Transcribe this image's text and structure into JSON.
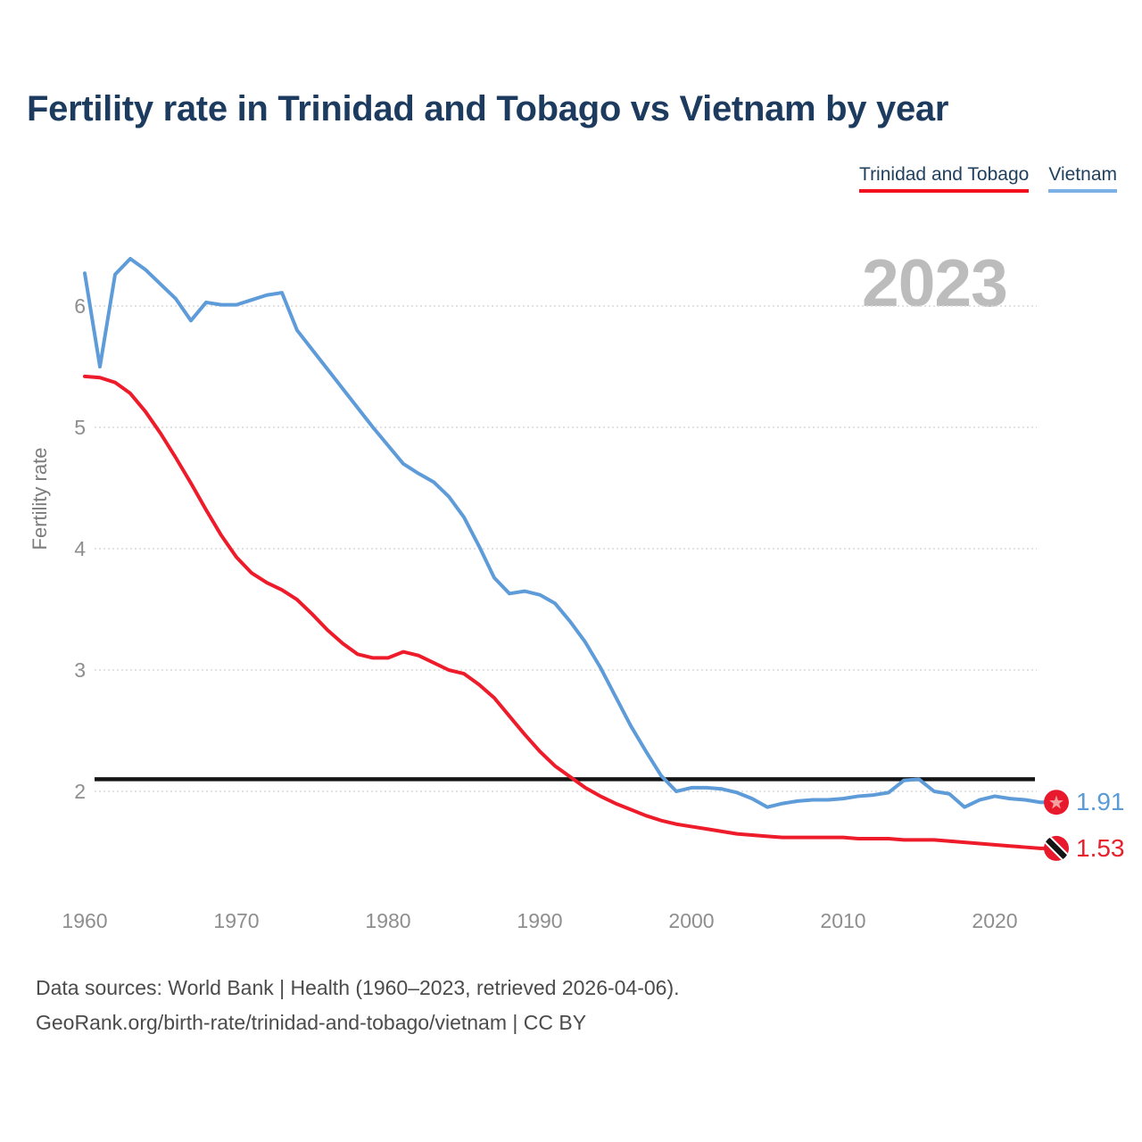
{
  "title": "Fertility rate in Trinidad and Tobago vs Vietnam by year",
  "watermark": "2023",
  "legend": [
    {
      "label": "Trinidad and Tobago",
      "color": "#f2101e"
    },
    {
      "label": "Vietnam",
      "color": "#7db0e5"
    }
  ],
  "source": {
    "line1": "Data sources: World Bank | Health (1960–2023, retrieved 2026-04-06).",
    "line2": "GeoRank.org/birth-rate/trinidad-and-tobago/vietnam | CC BY"
  },
  "end_labels": [
    {
      "series": "Vietnam",
      "value": "1.91",
      "color": "#5b9bd5",
      "flag": "vietnam"
    },
    {
      "series": "Trinidad and Tobago",
      "value": "1.53",
      "color": "#e8202c",
      "flag": "trinidad-and-tobago"
    }
  ],
  "colors": {
    "trinidad_line": "#ee1b2a",
    "vietnam_line": "#5e9bd9",
    "flag_red": "#e8192d",
    "vietnam_star": "#f2a0a0",
    "reference_line": "#141414",
    "grid": "#d9d9d9",
    "tick_text": "#8e8e8e"
  },
  "chart_data": {
    "type": "line",
    "title": "Fertility rate in Trinidad and Tobago vs Vietnam by year",
    "xlabel": "",
    "ylabel": "Fertility rate",
    "grid": "horizontal",
    "legend_position": "top-right",
    "xlim": [
      1960,
      2023
    ],
    "ylim": [
      1.35,
      6.55
    ],
    "x_ticks": [
      1960,
      1970,
      1980,
      1990,
      2000,
      2010,
      2020
    ],
    "y_ticks": [
      2,
      3,
      4,
      5,
      6
    ],
    "reference_line": {
      "value": 2.1
    },
    "x": [
      1960,
      1961,
      1962,
      1963,
      1964,
      1965,
      1966,
      1967,
      1968,
      1969,
      1970,
      1971,
      1972,
      1973,
      1974,
      1975,
      1976,
      1977,
      1978,
      1979,
      1980,
      1981,
      1982,
      1983,
      1984,
      1985,
      1986,
      1987,
      1988,
      1989,
      1990,
      1991,
      1992,
      1993,
      1994,
      1995,
      1996,
      1997,
      1998,
      1999,
      2000,
      2001,
      2002,
      2003,
      2004,
      2005,
      2006,
      2007,
      2008,
      2009,
      2010,
      2011,
      2012,
      2013,
      2014,
      2015,
      2016,
      2017,
      2018,
      2019,
      2020,
      2021,
      2022,
      2023
    ],
    "series": [
      {
        "name": "Trinidad and Tobago",
        "color": "#ee1b2a",
        "end_value": 1.53,
        "values": [
          5.42,
          5.41,
          5.37,
          5.28,
          5.13,
          4.95,
          4.75,
          4.54,
          4.32,
          4.11,
          3.93,
          3.8,
          3.72,
          3.66,
          3.58,
          3.46,
          3.33,
          3.22,
          3.13,
          3.1,
          3.1,
          3.15,
          3.12,
          3.06,
          3.0,
          2.97,
          2.88,
          2.77,
          2.62,
          2.47,
          2.33,
          2.21,
          2.12,
          2.03,
          1.96,
          1.9,
          1.85,
          1.8,
          1.76,
          1.73,
          1.71,
          1.69,
          1.67,
          1.65,
          1.64,
          1.63,
          1.62,
          1.62,
          1.62,
          1.62,
          1.62,
          1.61,
          1.61,
          1.61,
          1.6,
          1.6,
          1.6,
          1.59,
          1.58,
          1.57,
          1.56,
          1.55,
          1.54,
          1.53
        ]
      },
      {
        "name": "Vietnam",
        "color": "#5e9bd9",
        "end_value": 1.91,
        "values": [
          6.27,
          5.5,
          6.26,
          6.39,
          6.3,
          6.18,
          6.06,
          5.88,
          6.03,
          6.01,
          6.01,
          6.05,
          6.09,
          6.11,
          5.8,
          5.64,
          5.48,
          5.32,
          5.16,
          5.0,
          4.85,
          4.7,
          4.62,
          4.55,
          4.43,
          4.26,
          4.02,
          3.76,
          3.63,
          3.65,
          3.62,
          3.55,
          3.4,
          3.23,
          3.02,
          2.78,
          2.54,
          2.33,
          2.13,
          2.0,
          2.03,
          2.03,
          2.02,
          1.99,
          1.94,
          1.87,
          1.9,
          1.92,
          1.93,
          1.93,
          1.94,
          1.96,
          1.97,
          1.99,
          2.09,
          2.1,
          2.0,
          1.98,
          1.87,
          1.93,
          1.96,
          1.94,
          1.93,
          1.91
        ]
      }
    ]
  }
}
